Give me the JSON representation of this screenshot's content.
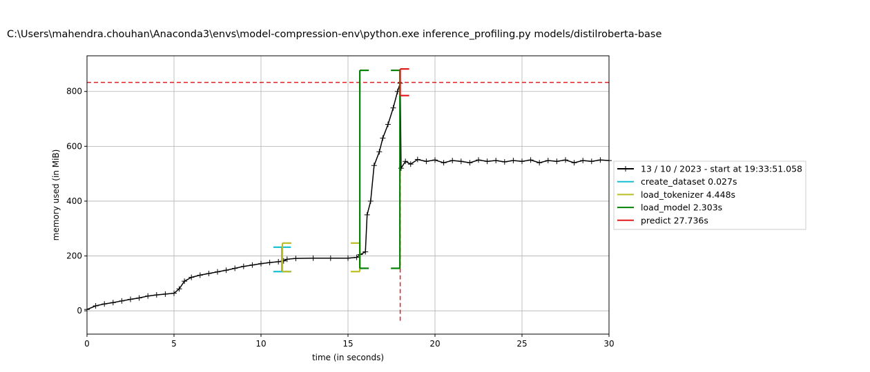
{
  "chart_data": {
    "type": "line",
    "title": "C:\\Users\\mahendra.chouhan\\Anaconda3\\envs\\model-compression-env\\python.exe inference_profiling.py models/distilroberta-base",
    "xlabel": "time (in seconds)",
    "ylabel": "memory used (in MiB)",
    "xlim": [
      0,
      30
    ],
    "ylim": [
      -85,
      930
    ],
    "x_ticks": [
      0,
      5,
      10,
      15,
      20,
      25,
      30
    ],
    "y_ticks": [
      0,
      200,
      400,
      600,
      800
    ],
    "grid": true,
    "legend_position": "outside-right",
    "series": [
      {
        "name": "13 / 10 / 2023 - start at 19:33:51.058",
        "color": "#000000",
        "marker": "+",
        "points": [
          [
            0.0,
            5
          ],
          [
            0.5,
            18
          ],
          [
            1.0,
            25
          ],
          [
            1.5,
            30
          ],
          [
            2.0,
            36
          ],
          [
            2.5,
            42
          ],
          [
            3.0,
            47
          ],
          [
            3.5,
            54
          ],
          [
            4.0,
            58
          ],
          [
            4.5,
            61
          ],
          [
            5.0,
            64
          ],
          [
            5.3,
            80
          ],
          [
            5.6,
            108
          ],
          [
            6.0,
            122
          ],
          [
            6.5,
            130
          ],
          [
            7.0,
            136
          ],
          [
            7.5,
            142
          ],
          [
            8.0,
            148
          ],
          [
            8.5,
            155
          ],
          [
            9.0,
            162
          ],
          [
            9.5,
            167
          ],
          [
            10.0,
            172
          ],
          [
            10.5,
            176
          ],
          [
            11.0,
            179
          ],
          [
            11.3,
            182
          ],
          [
            11.5,
            188
          ],
          [
            12.0,
            191
          ],
          [
            13.0,
            192
          ],
          [
            14.0,
            192
          ],
          [
            15.0,
            192
          ],
          [
            15.5,
            195
          ],
          [
            15.7,
            205
          ],
          [
            16.0,
            215
          ],
          [
            16.1,
            350
          ],
          [
            16.3,
            400
          ],
          [
            16.5,
            530
          ],
          [
            16.8,
            580
          ],
          [
            17.0,
            630
          ],
          [
            17.3,
            680
          ],
          [
            17.6,
            740
          ],
          [
            17.85,
            800
          ],
          [
            18.0,
            830
          ],
          [
            18.05,
            520
          ],
          [
            18.3,
            545
          ],
          [
            18.6,
            535
          ],
          [
            19.0,
            552
          ],
          [
            19.5,
            545
          ],
          [
            20.0,
            550
          ],
          [
            20.5,
            540
          ],
          [
            21.0,
            548
          ],
          [
            21.5,
            545
          ],
          [
            22.0,
            540
          ],
          [
            22.5,
            550
          ],
          [
            23.0,
            545
          ],
          [
            23.5,
            548
          ],
          [
            24.0,
            543
          ],
          [
            24.5,
            548
          ],
          [
            25.0,
            545
          ],
          [
            25.5,
            550
          ],
          [
            26.0,
            540
          ],
          [
            26.5,
            548
          ],
          [
            27.0,
            545
          ],
          [
            27.5,
            550
          ],
          [
            28.0,
            540
          ],
          [
            28.5,
            548
          ],
          [
            29.0,
            545
          ],
          [
            29.5,
            550
          ],
          [
            30.0,
            548
          ]
        ]
      },
      {
        "name": "create_dataset 0.027s",
        "color": "#17becf",
        "bracket": {
          "start": 11.2,
          "end": 11.227,
          "low": 143,
          "high": 232
        }
      },
      {
        "name": "load_tokenizer 4.448s",
        "color": "#bcbd22",
        "bracket": {
          "start": 11.23,
          "end": 15.678,
          "low": 143,
          "high": 247
        }
      },
      {
        "name": "load_model 2.303s",
        "color": "#008000",
        "bracket": {
          "start": 15.68,
          "end": 17.983,
          "low": 155,
          "high": 877
        }
      },
      {
        "name": "predict 27.736s",
        "color": "#e31a1c",
        "bracket": {
          "start": 18.0,
          "end": 45.736,
          "low": 785,
          "high": 882
        }
      }
    ],
    "max_memory_line": {
      "y": 833,
      "x": 18.0,
      "color": "#e31a1c",
      "style": "dashed"
    }
  }
}
